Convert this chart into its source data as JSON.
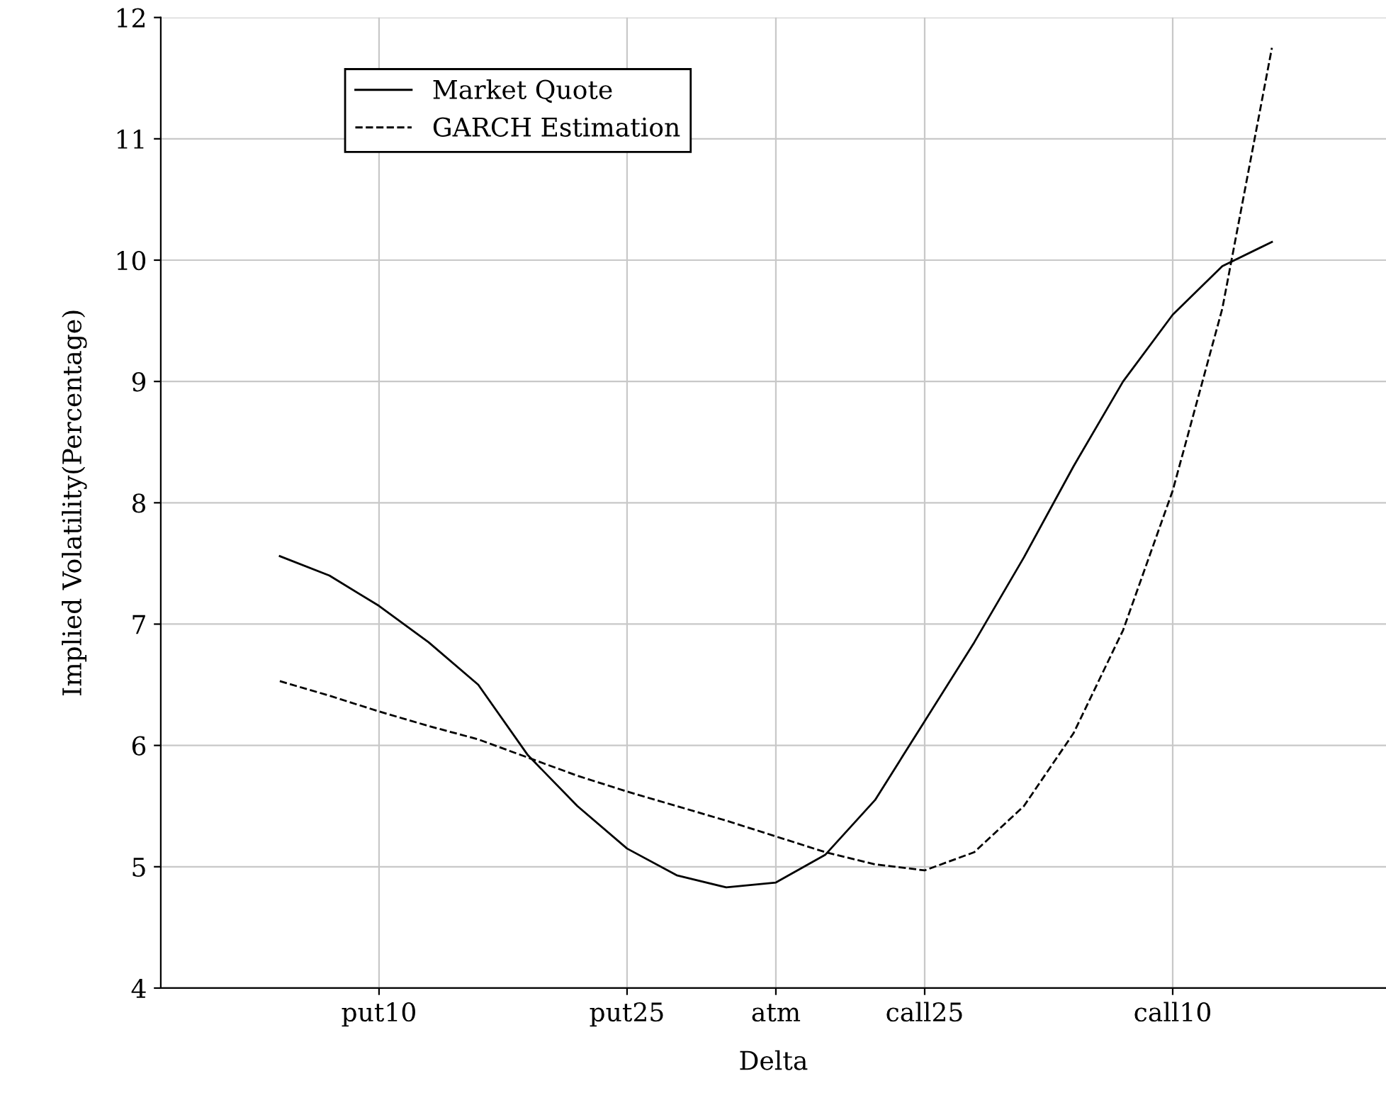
{
  "chart_data": {
    "type": "line",
    "xlabel": "Delta",
    "ylabel": "Implied Volatility(Percentage)",
    "categories": [
      null,
      null,
      "put10",
      null,
      null,
      null,
      null,
      "put25",
      null,
      null,
      "atm",
      null,
      null,
      "call25",
      null,
      null,
      null,
      null,
      "call10",
      null,
      null
    ],
    "ylim": [
      4,
      12
    ],
    "yticks": [
      4,
      5,
      6,
      7,
      8,
      9,
      10,
      11,
      12
    ],
    "grid": true,
    "legend": "top left",
    "marker": "none",
    "series": [
      {
        "name": "Market Quote",
        "color": "#000000",
        "line_style": "solid",
        "values": [
          7.56,
          7.4,
          7.15,
          6.85,
          6.5,
          5.92,
          5.5,
          5.15,
          4.93,
          4.83,
          4.87,
          5.1,
          5.55,
          6.2,
          6.85,
          7.55,
          8.3,
          9.0,
          9.55,
          9.95,
          10.15
        ]
      },
      {
        "name": "GARCH Estimation",
        "color": "#000000",
        "line_style": "dashed",
        "values": [
          6.53,
          6.41,
          6.28,
          6.16,
          6.05,
          5.9,
          5.75,
          5.62,
          5.5,
          5.38,
          5.25,
          5.12,
          5.02,
          4.97,
          5.12,
          5.5,
          6.1,
          6.95,
          8.1,
          9.6,
          11.75
        ]
      }
    ]
  }
}
